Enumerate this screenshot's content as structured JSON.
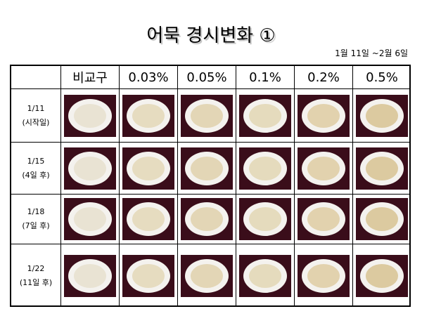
{
  "title": "어묵 경시변화 ①",
  "subtitle": "1월 11일 ~2월 6일",
  "table": {
    "header": [
      "비교구",
      "0.03%",
      "0.05%",
      "0.1%",
      "0.2%",
      "0.5%"
    ],
    "rows": [
      {
        "date": "1/11",
        "note": "(시작일)"
      },
      {
        "date": "1/15",
        "note": "(4일 후)"
      },
      {
        "date": "1/18",
        "note": "(7일 후)"
      },
      {
        "date": "1/22",
        "note": "(11일 후)"
      }
    ]
  }
}
